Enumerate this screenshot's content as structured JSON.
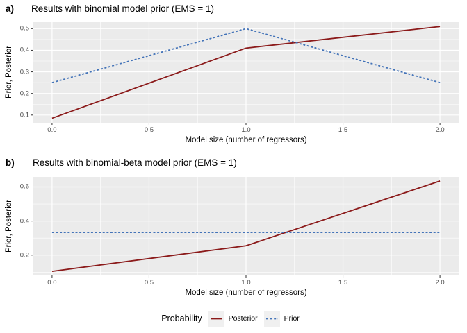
{
  "colors": {
    "posterior_line": "#8B1A1A",
    "prior_line": "#4373B8",
    "panel_background": "#EBEBEB",
    "gridline": "#FFFFFF",
    "tick_mark": "#333333",
    "tick_label": "#4D4D4D",
    "legend_key_background": "#F0F0F0",
    "text": "#000000"
  },
  "legend": {
    "title": "Probability",
    "items": [
      {
        "label": "Posterior",
        "style": "solid",
        "color": "#8B1A1A"
      },
      {
        "label": "Prior",
        "style": "dashed",
        "color": "#4373B8"
      }
    ]
  },
  "chart_data": [
    {
      "type": "line",
      "panel_label": "a)",
      "title": "Results with binomial model prior (EMS = 1)",
      "xlabel": "Model size (number of regressors)",
      "ylabel": "Prior, Posterior",
      "x": [
        0,
        1,
        2
      ],
      "series": [
        {
          "name": "Posterior",
          "values": [
            0.085,
            0.41,
            0.51
          ],
          "line": "solid",
          "color": "#8B1A1A"
        },
        {
          "name": "Prior",
          "values": [
            0.25,
            0.5,
            0.25
          ],
          "line": "dashed",
          "color": "#4373B8"
        }
      ],
      "xticks": [
        0.0,
        0.5,
        1.0,
        1.5,
        2.0
      ],
      "yticks": [
        0.1,
        0.2,
        0.3,
        0.4,
        0.5
      ],
      "xlim": [
        -0.1,
        2.1
      ],
      "ylim": [
        0.064,
        0.53
      ],
      "grid": true,
      "legend_position": "bottom"
    },
    {
      "type": "line",
      "panel_label": "b)",
      "title": "Results with binomial-beta model prior (EMS = 1)",
      "xlabel": "Model size (number of regressors)",
      "ylabel": "Prior, Posterior",
      "x": [
        0,
        1,
        2
      ],
      "series": [
        {
          "name": "Posterior",
          "values": [
            0.105,
            0.255,
            0.635
          ],
          "line": "solid",
          "color": "#8B1A1A"
        },
        {
          "name": "Prior",
          "values": [
            0.333,
            0.333,
            0.333
          ],
          "line": "dashed",
          "color": "#4373B8"
        }
      ],
      "xticks": [
        0.0,
        0.5,
        1.0,
        1.5,
        2.0
      ],
      "yticks": [
        0.2,
        0.4,
        0.6
      ],
      "xlim": [
        -0.1,
        2.1
      ],
      "ylim": [
        0.081,
        0.659
      ],
      "grid": true,
      "legend_position": "bottom"
    }
  ]
}
